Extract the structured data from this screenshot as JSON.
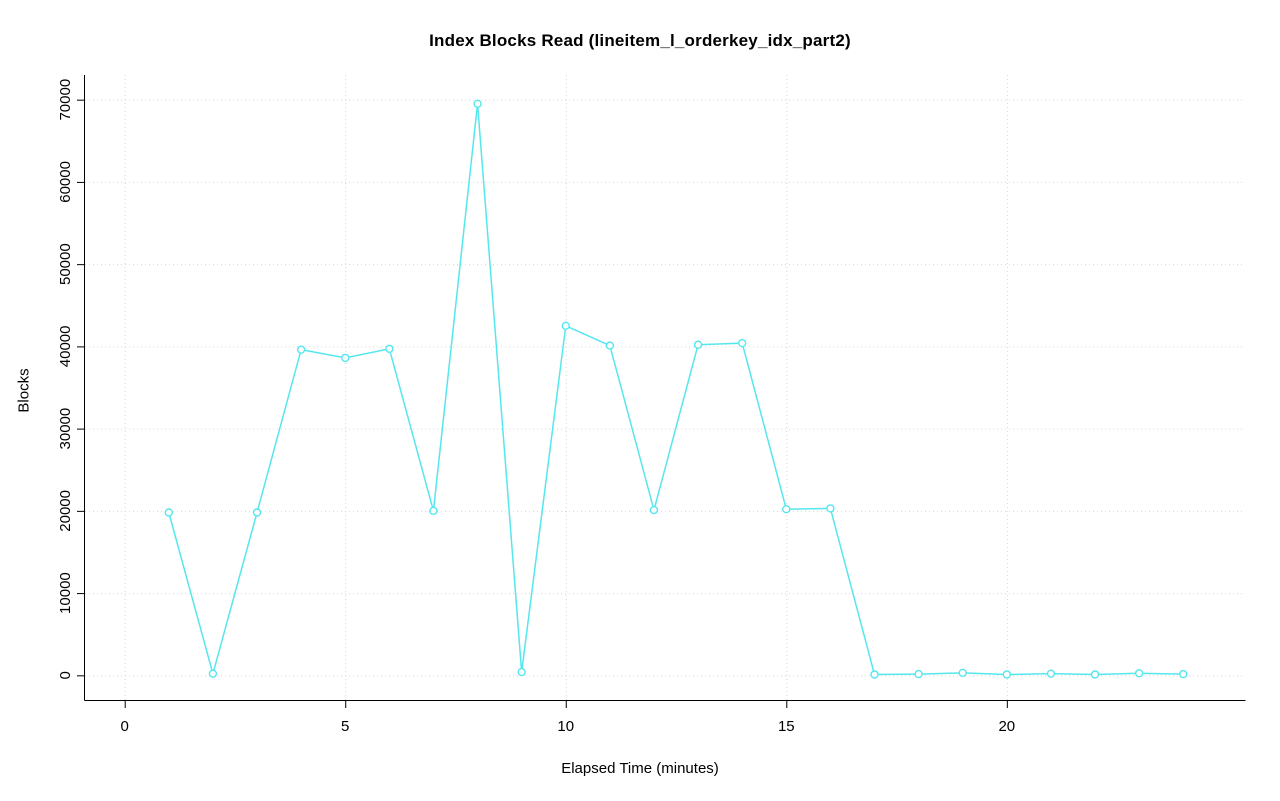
{
  "chart_data": {
    "type": "line",
    "title": "Index Blocks Read (lineitem_l_orderkey_idx_part2)",
    "xlabel": "Elapsed Time (minutes)",
    "ylabel": "Blocks",
    "x": [
      1,
      2,
      3,
      4,
      5,
      6,
      7,
      8,
      9,
      10,
      11,
      12,
      13,
      14,
      15,
      16,
      17,
      18,
      19,
      20,
      21,
      22,
      23,
      24
    ],
    "y": [
      19800,
      200,
      19800,
      39600,
      38600,
      39700,
      20000,
      69500,
      400,
      42500,
      40100,
      20100,
      40200,
      40400,
      20200,
      20300,
      100,
      150,
      300,
      100,
      200,
      100,
      250,
      150
    ],
    "xlim": [
      0,
      24
    ],
    "ylim": [
      0,
      70000
    ],
    "xticks": [
      0,
      5,
      10,
      15,
      20
    ],
    "yticks": [
      0,
      10000,
      20000,
      30000,
      40000,
      50000,
      60000,
      70000
    ],
    "grid": true,
    "legend_position": "none",
    "line_color": "#55E7EE",
    "marker": "open-circle",
    "grid_color": "#d6d6d6",
    "axis_color": "#000000"
  }
}
